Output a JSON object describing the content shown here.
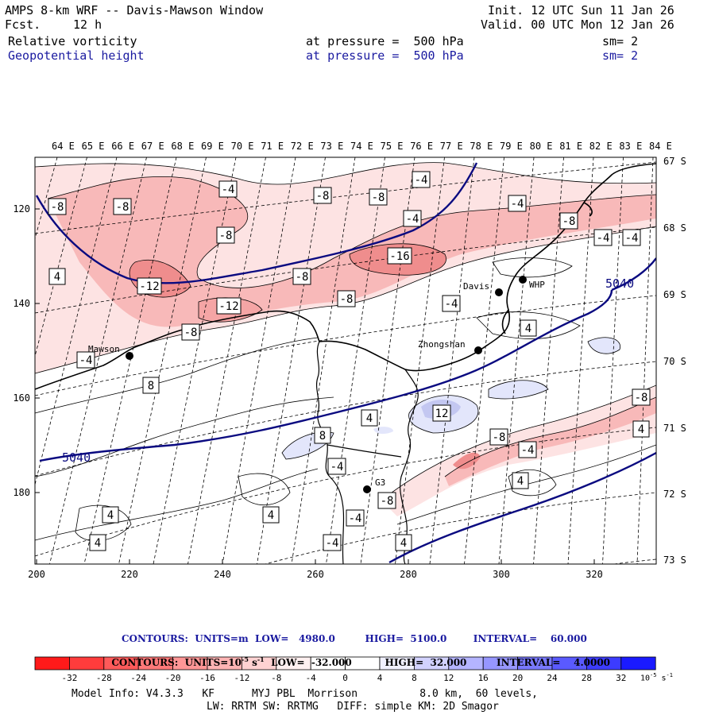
{
  "header": {
    "title": "AMPS 8-km WRF -- Davis-Mawson Window",
    "fcst_label": "Fcst.",
    "fcst_value": "12 h",
    "init": "Init. 12 UTC Sun 11 Jan 26",
    "valid": "Valid. 00 UTC Mon 12 Jan 26",
    "fields": [
      {
        "name": "Relative vorticity",
        "level": "at pressure =  500 hPa",
        "sm": "sm= 2",
        "color": "#000000"
      },
      {
        "name": "Geopotential height",
        "level": "at pressure =  500 hPa",
        "sm": "sm= 2",
        "color": "#1a1aa0"
      }
    ]
  },
  "map": {
    "lon_labels": [
      "64 E",
      "65 E",
      "66 E",
      "67 E",
      "68 E",
      "69 E",
      "70 E",
      "71 E",
      "72 E",
      "73 E",
      "74 E",
      "75 E",
      "76 E",
      "77 E",
      "78 E",
      "79 E",
      "80 E",
      "81 E",
      "82 E",
      "83 E",
      "84 E"
    ],
    "lat_labels": [
      "67 S",
      "68 S",
      "69 S",
      "70 S",
      "71 S",
      "72 S",
      "73 S"
    ],
    "x_ticks": [
      "200",
      "220",
      "240",
      "260",
      "280",
      "300",
      "320"
    ],
    "y_ticks": [
      "120",
      "140",
      "160",
      "180"
    ],
    "stations": [
      {
        "name": "Mawson"
      },
      {
        "name": "Davis"
      },
      {
        "name": "WHP"
      },
      {
        "name": "Zhongshan"
      },
      {
        "name": "G3"
      }
    ],
    "height_labels": [
      "5040",
      "5040"
    ],
    "vort_labels": [
      "-8",
      "-8",
      "-4",
      "-8",
      "-8",
      "-4",
      "-4",
      "-8",
      "-4",
      "-8",
      "-8",
      "-16",
      "-4",
      "-12",
      "-12",
      "-8",
      "-8",
      "-4",
      "-4",
      "4",
      "-4",
      "4",
      "8",
      "-8",
      "12",
      "4",
      "-8",
      "-4",
      "8",
      "-4",
      "4",
      "-4",
      "4",
      "4",
      "4",
      "4",
      "-8",
      "-4",
      "4"
    ],
    "colors": {
      "pos1": "#fde4e4",
      "pos2": "#f7b4b4",
      "pos3": "#ef8a8a",
      "neg1": "#e6e8fb",
      "neg2": "#c3c7f1",
      "height": "#0a0a80"
    }
  },
  "contours_info": {
    "line1": "CONTOURS:  UNITS=m  LOW=   4980.0         HIGH=  5100.0        INTERVAL=    60.000",
    "line2": "CONTOURS:  UNITS=10",
    "line2_sup": "-5",
    "line2_rest": " s",
    "line2_sup2": "-1",
    "line2_tail": "  LOW=  -32.000          HIGH=  32.000         INTERVAL=    4.0000"
  },
  "colorbar": {
    "colors": [
      "#ff1a1a",
      "#ff3c3c",
      "#ff5a5a",
      "#ff7878",
      "#ff9696",
      "#ffb4b4",
      "#ffd2d2",
      "#fff0f0",
      "#ffffff",
      "#ffffff",
      "#f0f0ff",
      "#d2d2ff",
      "#b4b4ff",
      "#9696ff",
      "#7878ff",
      "#5a5aff",
      "#3c3cff",
      "#1a1aff"
    ],
    "labels": [
      "-32",
      "-28",
      "-24",
      "-20",
      "-16",
      "-12",
      "-8",
      "-4",
      "0",
      "4",
      "8",
      "12",
      "16",
      "20",
      "24",
      "28",
      "32"
    ],
    "unit": "10",
    "unit_sup": "-5",
    "unit_rest": " s",
    "unit_sup2": "-1"
  },
  "footer": {
    "line1": "Model Info: V4.3.3   KF      MYJ PBL  Morrison          8.0 km,  60 levels,",
    "line2": "LW: RRTM SW: RRTMG   DIFF: simple KM: 2D Smagor"
  }
}
